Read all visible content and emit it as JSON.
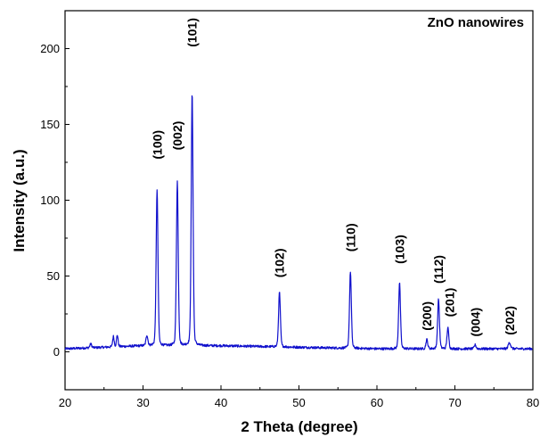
{
  "chart_data": {
    "type": "line",
    "title": "",
    "xlabel": "2 Theta (degree)",
    "ylabel": "Intensity (a.u.)",
    "xlim": [
      20,
      80
    ],
    "ylim": [
      -25,
      225
    ],
    "xticks": [
      20,
      30,
      40,
      50,
      60,
      70,
      80
    ],
    "yticks": [
      0,
      50,
      100,
      150,
      200
    ],
    "grid": false,
    "legend_position": "top-right",
    "line_color": "#1010cc",
    "series": [
      {
        "name": "ZnO nanowires",
        "baseline": [
          [
            20,
            2
          ],
          [
            30,
            4
          ],
          [
            40,
            4
          ],
          [
            50,
            3
          ],
          [
            60,
            2
          ],
          [
            70,
            2
          ],
          [
            80,
            2
          ]
        ],
        "peaks": [
          {
            "x": 23.3,
            "y": 3,
            "w": 0.12
          },
          {
            "x": 26.2,
            "y": 8,
            "w": 0.1
          },
          {
            "x": 26.7,
            "y": 9,
            "w": 0.1
          },
          {
            "x": 30.5,
            "y": 8,
            "w": 0.12
          },
          {
            "x": 31.8,
            "y": 120,
            "w": 0.12
          },
          {
            "x": 34.4,
            "y": 126,
            "w": 0.12
          },
          {
            "x": 36.3,
            "y": 194,
            "w": 0.12
          },
          {
            "x": 47.5,
            "y": 42,
            "w": 0.12
          },
          {
            "x": 56.6,
            "y": 59,
            "w": 0.12
          },
          {
            "x": 62.9,
            "y": 51,
            "w": 0.12
          },
          {
            "x": 66.4,
            "y": 7,
            "w": 0.12
          },
          {
            "x": 67.9,
            "y": 38,
            "w": 0.12
          },
          {
            "x": 69.1,
            "y": 16,
            "w": 0.12
          },
          {
            "x": 72.6,
            "y": 3,
            "w": 0.12
          },
          {
            "x": 77.0,
            "y": 5,
            "w": 0.15
          }
        ]
      }
    ],
    "peak_labels": [
      {
        "text": "(100)",
        "x": 31.8,
        "y": 127
      },
      {
        "text": "(002)",
        "x": 34.4,
        "y": 133
      },
      {
        "text": "(101)",
        "x": 36.3,
        "y": 201
      },
      {
        "text": "(102)",
        "x": 47.5,
        "y": 49
      },
      {
        "text": "(110)",
        "x": 56.6,
        "y": 66
      },
      {
        "text": "(103)",
        "x": 62.9,
        "y": 58
      },
      {
        "text": "(200)",
        "x": 66.4,
        "y": 14
      },
      {
        "text": "(112)",
        "x": 67.9,
        "y": 45
      },
      {
        "text": "(201)",
        "x": 69.3,
        "y": 23
      },
      {
        "text": "(004)",
        "x": 72.6,
        "y": 10
      },
      {
        "text": "(202)",
        "x": 77.0,
        "y": 11
      }
    ]
  }
}
